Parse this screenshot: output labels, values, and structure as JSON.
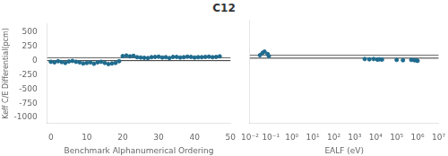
{
  "chart_data": [
    {
      "type": "scatter",
      "title": "C12",
      "xlabel": "Benchmark Alphanumerical Ordering",
      "ylabel": "Keff C/E Differential(pcm)",
      "x": [
        0,
        1,
        2,
        3,
        4,
        5,
        6,
        7,
        8,
        9,
        10,
        11,
        12,
        13,
        14,
        15,
        16,
        17,
        18,
        19,
        20,
        21,
        22,
        23,
        24,
        25,
        26,
        27,
        28,
        29,
        30,
        31,
        32,
        33,
        34,
        35,
        36,
        37,
        38,
        39,
        40,
        41,
        42,
        43,
        44,
        45,
        46,
        47
      ],
      "values": [
        -20,
        -30,
        -10,
        -25,
        -40,
        -15,
        -5,
        -20,
        -30,
        -50,
        -40,
        -30,
        -55,
        -30,
        -20,
        -40,
        -60,
        -50,
        -40,
        -10,
        80,
        90,
        75,
        85,
        60,
        55,
        50,
        45,
        60,
        65,
        70,
        55,
        60,
        45,
        65,
        65,
        55,
        60,
        70,
        65,
        55,
        60,
        60,
        65,
        70,
        60,
        65,
        75
      ],
      "color": "#1f6b8e",
      "marker": "circle",
      "hlines": [
        {
          "value": 0,
          "color": "#333333"
        },
        {
          "value": 50,
          "color": "#666666"
        }
      ],
      "xlim": [
        -1,
        50
      ],
      "xticks": [
        0,
        10,
        20,
        30,
        40,
        50
      ],
      "ylim": [
        -1100,
        650
      ],
      "yticks": [
        -1000,
        -750,
        -500,
        -250,
        0,
        250,
        500
      ],
      "grid": false
    },
    {
      "type": "scatter",
      "xlabel": "EALF (eV)",
      "x": [
        0.03,
        0.04,
        0.05,
        0.07,
        0.08,
        3000,
        5000,
        8000,
        12000,
        15000,
        20000,
        100000,
        200000,
        500000,
        700000,
        900000,
        1000000
      ],
      "values": [
        50,
        90,
        110,
        70,
        35,
        -15,
        -20,
        -15,
        -25,
        -20,
        -25,
        -30,
        -35,
        -30,
        -35,
        -40,
        -45
      ],
      "color": "#1f6b8e",
      "marker": "circle",
      "hlines": [
        {
          "value": 0,
          "color": "#333333"
        },
        {
          "value": 50,
          "color": "#666666"
        }
      ],
      "log": "x",
      "xlim": [
        0.01,
        10000000
      ],
      "xticks": [
        {
          "value": 0.01,
          "label": "10⁻²"
        },
        {
          "value": 0.1,
          "label": "10⁻¹"
        },
        {
          "value": 1,
          "label": "10⁰"
        },
        {
          "value": 10,
          "label": "10¹"
        },
        {
          "value": 100,
          "label": "10²"
        },
        {
          "value": 1000,
          "label": "10³"
        },
        {
          "value": 10000,
          "label": "10⁴"
        },
        {
          "value": 100000,
          "label": "10⁵"
        },
        {
          "value": 1000000,
          "label": "10⁶"
        },
        {
          "value": 10000000,
          "label": "10⁷"
        }
      ],
      "ylim": [
        -1100,
        650
      ],
      "yticks": [
        -1000,
        -750,
        -500,
        -250,
        0,
        250,
        500
      ],
      "grid": false,
      "tick_labels": "x"
    }
  ]
}
